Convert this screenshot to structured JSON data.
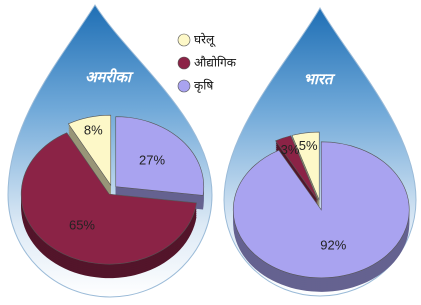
{
  "legend": {
    "items": [
      "घरेलू",
      "औद्योगिक",
      "कृषि"
    ],
    "colors": [
      "#fdf8c8",
      "#8b2346",
      "#a9a3f0"
    ]
  },
  "chart_data": [
    {
      "type": "pie",
      "title": "अमरीका",
      "values": [
        8,
        65,
        27
      ],
      "value_labels": [
        "8%",
        "65%",
        "27%"
      ]
    },
    {
      "type": "pie",
      "title": "भारत",
      "values": [
        5,
        3,
        92
      ],
      "value_labels": [
        "5%",
        "3%",
        "92%"
      ]
    }
  ]
}
